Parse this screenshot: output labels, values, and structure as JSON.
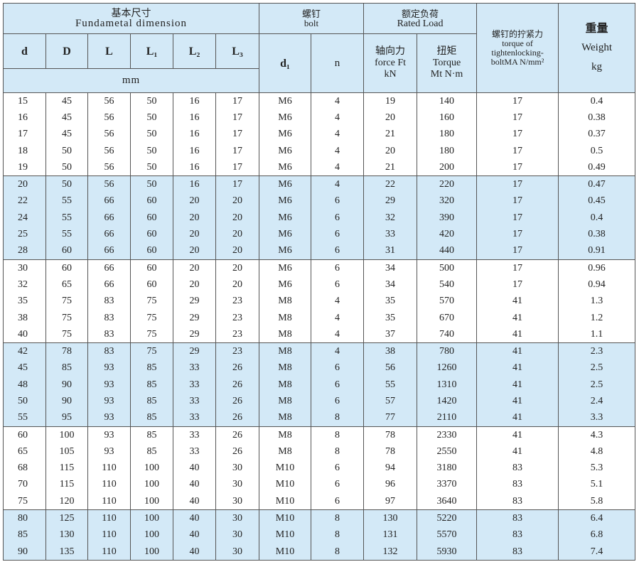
{
  "header": {
    "dim_cn": "基本尺寸",
    "dim_en": "Fundametal dimension",
    "bolt_cn": "螺钉",
    "bolt_en": "bolt",
    "load_cn": "额定负荷",
    "load_en": "Rated Load",
    "tight": "螺钉的拧紧力torque of tightenlocking-boltMA N/mm²",
    "weight_cn": "重量",
    "weight_en": "Weight",
    "weight_unit": "kg",
    "cols": [
      "d",
      "D",
      "L",
      "L₁",
      "L₂",
      "L₃"
    ],
    "mm": "mm",
    "d1": "d₁",
    "n": "n",
    "force": "轴向力 force Ft kN",
    "torque": "扭矩 Torque Mt N·m"
  },
  "colors": {
    "band": "#d3e9f7"
  },
  "rows": [
    [
      "15",
      "45",
      "56",
      "50",
      "16",
      "17",
      "M6",
      "4",
      "19",
      "140",
      "17",
      "0.4"
    ],
    [
      "16",
      "45",
      "56",
      "50",
      "16",
      "17",
      "M6",
      "4",
      "20",
      "160",
      "17",
      "0.38"
    ],
    [
      "17",
      "45",
      "56",
      "50",
      "16",
      "17",
      "M6",
      "4",
      "21",
      "180",
      "17",
      "0.37"
    ],
    [
      "18",
      "50",
      "56",
      "50",
      "16",
      "17",
      "M6",
      "4",
      "20",
      "180",
      "17",
      "0.5"
    ],
    [
      "19",
      "50",
      "56",
      "50",
      "16",
      "17",
      "M6",
      "4",
      "21",
      "200",
      "17",
      "0.49"
    ],
    [
      "20",
      "50",
      "56",
      "50",
      "16",
      "17",
      "M6",
      "4",
      "22",
      "220",
      "17",
      "0.47"
    ],
    [
      "22",
      "55",
      "66",
      "60",
      "20",
      "20",
      "M6",
      "6",
      "29",
      "320",
      "17",
      "0.45"
    ],
    [
      "24",
      "55",
      "66",
      "60",
      "20",
      "20",
      "M6",
      "6",
      "32",
      "390",
      "17",
      "0.4"
    ],
    [
      "25",
      "55",
      "66",
      "60",
      "20",
      "20",
      "M6",
      "6",
      "33",
      "420",
      "17",
      "0.38"
    ],
    [
      "28",
      "60",
      "66",
      "60",
      "20",
      "20",
      "M6",
      "6",
      "31",
      "440",
      "17",
      "0.91"
    ],
    [
      "30",
      "60",
      "66",
      "60",
      "20",
      "20",
      "M6",
      "6",
      "34",
      "500",
      "17",
      "0.96"
    ],
    [
      "32",
      "65",
      "66",
      "60",
      "20",
      "20",
      "M6",
      "6",
      "34",
      "540",
      "17",
      "0.94"
    ],
    [
      "35",
      "75",
      "83",
      "75",
      "29",
      "23",
      "M8",
      "4",
      "35",
      "570",
      "41",
      "1.3"
    ],
    [
      "38",
      "75",
      "83",
      "75",
      "29",
      "23",
      "M8",
      "4",
      "35",
      "670",
      "41",
      "1.2"
    ],
    [
      "40",
      "75",
      "83",
      "75",
      "29",
      "23",
      "M8",
      "4",
      "37",
      "740",
      "41",
      "1.1"
    ],
    [
      "42",
      "78",
      "83",
      "75",
      "29",
      "23",
      "M8",
      "4",
      "38",
      "780",
      "41",
      "2.3"
    ],
    [
      "45",
      "85",
      "93",
      "85",
      "33",
      "26",
      "M8",
      "6",
      "56",
      "1260",
      "41",
      "2.5"
    ],
    [
      "48",
      "90",
      "93",
      "85",
      "33",
      "26",
      "M8",
      "6",
      "55",
      "1310",
      "41",
      "2.5"
    ],
    [
      "50",
      "90",
      "93",
      "85",
      "33",
      "26",
      "M8",
      "6",
      "57",
      "1420",
      "41",
      "2.4"
    ],
    [
      "55",
      "95",
      "93",
      "85",
      "33",
      "26",
      "M8",
      "8",
      "77",
      "2110",
      "41",
      "3.3"
    ],
    [
      "60",
      "100",
      "93",
      "85",
      "33",
      "26",
      "M8",
      "8",
      "78",
      "2330",
      "41",
      "4.3"
    ],
    [
      "65",
      "105",
      "93",
      "85",
      "33",
      "26",
      "M8",
      "8",
      "78",
      "2550",
      "41",
      "4.8"
    ],
    [
      "68",
      "115",
      "110",
      "100",
      "40",
      "30",
      "M10",
      "6",
      "94",
      "3180",
      "83",
      "5.3"
    ],
    [
      "70",
      "115",
      "110",
      "100",
      "40",
      "30",
      "M10",
      "6",
      "96",
      "3370",
      "83",
      "5.1"
    ],
    [
      "75",
      "120",
      "110",
      "100",
      "40",
      "30",
      "M10",
      "6",
      "97",
      "3640",
      "83",
      "5.8"
    ],
    [
      "80",
      "125",
      "110",
      "100",
      "40",
      "30",
      "M10",
      "8",
      "130",
      "5220",
      "83",
      "6.4"
    ],
    [
      "85",
      "130",
      "110",
      "100",
      "40",
      "30",
      "M10",
      "8",
      "131",
      "5570",
      "83",
      "6.8"
    ],
    [
      "90",
      "135",
      "110",
      "100",
      "40",
      "30",
      "M10",
      "8",
      "132",
      "5930",
      "83",
      "7.4"
    ]
  ]
}
